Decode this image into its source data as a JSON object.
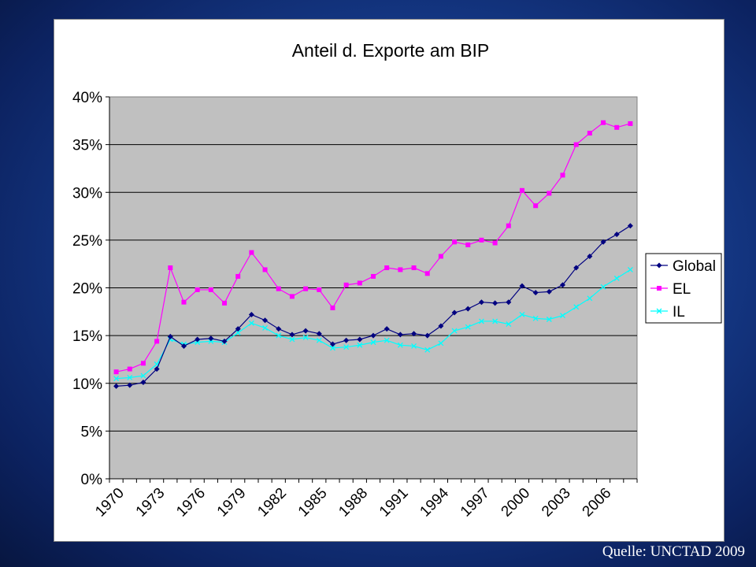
{
  "slide": {
    "source": "Quelle: UNCTAD 2009"
  },
  "chart_data": {
    "type": "line",
    "title": "Anteil d. Exporte am BIP",
    "xlabel": "",
    "ylabel": "",
    "ylim": [
      0,
      0.4
    ],
    "yticks": [
      "0%",
      "5%",
      "10%",
      "15%",
      "20%",
      "25%",
      "30%",
      "35%",
      "40%"
    ],
    "xtick_labels": [
      "1970",
      "1973",
      "1976",
      "1979",
      "1982",
      "1985",
      "1988",
      "1991",
      "1994",
      "1997",
      "2000",
      "2003",
      "2006"
    ],
    "x": [
      1970,
      1971,
      1972,
      1973,
      1974,
      1975,
      1976,
      1977,
      1978,
      1979,
      1980,
      1981,
      1982,
      1983,
      1984,
      1985,
      1986,
      1987,
      1988,
      1989,
      1990,
      1991,
      1992,
      1993,
      1994,
      1995,
      1996,
      1997,
      1998,
      1999,
      2000,
      2001,
      2002,
      2003,
      2004,
      2005,
      2006,
      2007,
      2008
    ],
    "grid": true,
    "legend": "right",
    "series": [
      {
        "name": "Global",
        "color": "#000080",
        "marker": "diamond",
        "values": [
          0.097,
          0.098,
          0.101,
          0.115,
          0.149,
          0.139,
          0.146,
          0.147,
          0.144,
          0.157,
          0.172,
          0.166,
          0.157,
          0.151,
          0.155,
          0.152,
          0.141,
          0.145,
          0.146,
          0.15,
          0.157,
          0.151,
          0.152,
          0.15,
          0.16,
          0.174,
          0.178,
          0.185,
          0.184,
          0.185,
          0.202,
          0.195,
          0.196,
          0.203,
          0.221,
          0.233,
          0.248,
          0.256,
          0.265
        ]
      },
      {
        "name": "EL",
        "color": "#ff00ff",
        "marker": "square",
        "values": [
          0.112,
          0.115,
          0.121,
          0.144,
          0.221,
          0.185,
          0.198,
          0.198,
          0.184,
          0.212,
          0.237,
          0.219,
          0.199,
          0.191,
          0.199,
          0.198,
          0.179,
          0.203,
          0.205,
          0.212,
          0.221,
          0.219,
          0.221,
          0.215,
          0.233,
          0.248,
          0.245,
          0.25,
          0.247,
          0.265,
          0.302,
          0.286,
          0.299,
          0.318,
          0.35,
          0.362,
          0.373,
          0.368,
          0.372
        ]
      },
      {
        "name": "IL",
        "color": "#00ffff",
        "marker": "x",
        "values": [
          0.105,
          0.106,
          0.108,
          0.12,
          0.146,
          0.141,
          0.143,
          0.144,
          0.143,
          0.153,
          0.163,
          0.158,
          0.15,
          0.146,
          0.148,
          0.145,
          0.137,
          0.138,
          0.14,
          0.143,
          0.145,
          0.14,
          0.139,
          0.135,
          0.142,
          0.155,
          0.159,
          0.165,
          0.165,
          0.162,
          0.172,
          0.168,
          0.167,
          0.171,
          0.18,
          0.189,
          0.201,
          0.21,
          0.219
        ]
      }
    ]
  }
}
